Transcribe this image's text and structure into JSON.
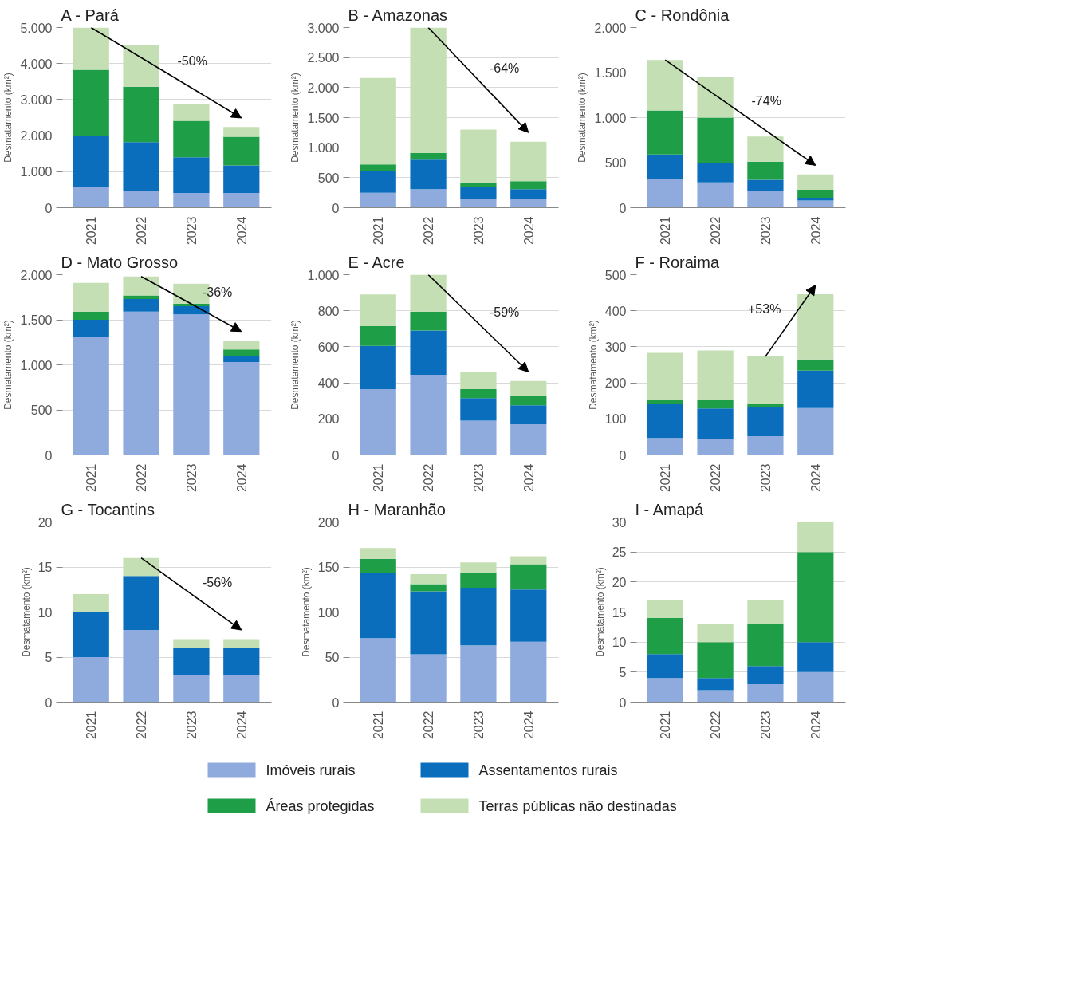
{
  "chart_data": [
    {
      "type": "bar",
      "stacked": true,
      "title": "A - Pará",
      "ylabel": "Desmatamento (km²)",
      "categories": [
        "2021",
        "2022",
        "2023",
        "2024"
      ],
      "ylim": [
        0,
        5000
      ],
      "yticks": [
        0,
        {
          "value": 1000,
          "label": "1.000"
        },
        {
          "value": 2000,
          "label": "2.000"
        },
        {
          "value": 3000,
          "label": "3.000"
        },
        {
          "value": 4000,
          "label": "4.000"
        },
        {
          "value": 5000,
          "label": "5.000"
        }
      ],
      "grid": "y",
      "annotations": [
        "-50%"
      ],
      "series": [
        {
          "color": "#8faadc",
          "values": [
            580,
            460,
            410,
            410
          ]
        },
        {
          "color": "#0a6ebd",
          "values": [
            1420,
            1360,
            990,
            760
          ]
        },
        {
          "color": "#1f9e48",
          "values": [
            1830,
            1540,
            1010,
            800
          ]
        },
        {
          "color": "#c5dfb4",
          "values": [
            1170,
            1160,
            470,
            270
          ]
        }
      ]
    },
    {
      "type": "bar",
      "stacked": true,
      "title": "B - Amazonas",
      "ylabel": "Desmatamento (km²)",
      "categories": [
        "2021",
        "2022",
        "2023",
        "2024"
      ],
      "ylim": [
        0,
        3000
      ],
      "yticks": [
        0,
        500,
        {
          "value": 1000,
          "label": "1.000"
        },
        {
          "value": 1500,
          "label": "1.500"
        },
        {
          "value": 2000,
          "label": "2.000"
        },
        {
          "value": 2500,
          "label": "2.500"
        },
        {
          "value": 3000,
          "label": "3.000"
        }
      ],
      "grid": "y",
      "annotations": [
        "-64%"
      ],
      "series": [
        {
          "color": "#8faadc",
          "values": [
            250,
            310,
            150,
            140
          ]
        },
        {
          "color": "#0a6ebd",
          "values": [
            360,
            490,
            190,
            170
          ]
        },
        {
          "color": "#1f9e48",
          "values": [
            110,
            110,
            80,
            130
          ]
        },
        {
          "color": "#c5dfb4",
          "values": [
            1440,
            2090,
            880,
            660
          ]
        }
      ]
    },
    {
      "type": "bar",
      "stacked": true,
      "title": "C - Rondônia",
      "ylabel": "Desmatamento (km²)",
      "categories": [
        "2021",
        "2022",
        "2023",
        "2024"
      ],
      "ylim": [
        0,
        2000
      ],
      "yticks": [
        0,
        500,
        {
          "value": 1000,
          "label": "1.000"
        },
        {
          "value": 1500,
          "label": "1.500"
        },
        {
          "value": 2000,
          "label": "2.000"
        }
      ],
      "grid": "y",
      "annotations": [
        "-74%"
      ],
      "series": [
        {
          "color": "#8faadc",
          "values": [
            320,
            280,
            190,
            80
          ]
        },
        {
          "color": "#0a6ebd",
          "values": [
            270,
            220,
            120,
            30
          ]
        },
        {
          "color": "#1f9e48",
          "values": [
            490,
            500,
            200,
            90
          ]
        },
        {
          "color": "#c5dfb4",
          "values": [
            560,
            450,
            280,
            170
          ]
        }
      ]
    },
    {
      "type": "bar",
      "stacked": true,
      "title": "D - Mato Grosso",
      "ylabel": "Desmatamento (km²)",
      "categories": [
        "2021",
        "2022",
        "2023",
        "2024"
      ],
      "ylim": [
        0,
        2000
      ],
      "yticks": [
        0,
        500,
        {
          "value": 1000,
          "label": "1.000"
        },
        {
          "value": 1500,
          "label": "1.500"
        },
        {
          "value": 2000,
          "label": "2.000"
        }
      ],
      "grid": "y",
      "annotations": [
        "-36%"
      ],
      "series": [
        {
          "color": "#8faadc",
          "values": [
            1310,
            1590,
            1560,
            1030
          ]
        },
        {
          "color": "#0a6ebd",
          "values": [
            190,
            140,
            90,
            70
          ]
        },
        {
          "color": "#1f9e48",
          "values": [
            90,
            40,
            30,
            70
          ]
        },
        {
          "color": "#c5dfb4",
          "values": [
            320,
            210,
            220,
            100
          ]
        }
      ]
    },
    {
      "type": "bar",
      "stacked": true,
      "title": "E - Acre",
      "ylabel": "Desmatamento (km²)",
      "categories": [
        "2021",
        "2022",
        "2023",
        "2024"
      ],
      "ylim": [
        0,
        1000
      ],
      "yticks": [
        0,
        200,
        400,
        600,
        800,
        {
          "value": 1000,
          "label": "1.000"
        }
      ],
      "grid": "y",
      "annotations": [
        "-59%"
      ],
      "series": [
        {
          "color": "#8faadc",
          "values": [
            365,
            445,
            190,
            170
          ]
        },
        {
          "color": "#0a6ebd",
          "values": [
            240,
            245,
            125,
            105
          ]
        },
        {
          "color": "#1f9e48",
          "values": [
            110,
            105,
            50,
            55
          ]
        },
        {
          "color": "#c5dfb4",
          "values": [
            175,
            205,
            95,
            80
          ]
        }
      ]
    },
    {
      "type": "bar",
      "stacked": true,
      "title": "F - Roraima",
      "ylabel": "Desmatamento (km²)",
      "categories": [
        "2021",
        "2022",
        "2023",
        "2024"
      ],
      "ylim": [
        0,
        500
      ],
      "yticks": [
        0,
        100,
        200,
        300,
        400,
        500
      ],
      "grid": "y",
      "annotations": [
        "+53%"
      ],
      "series": [
        {
          "color": "#8faadc",
          "values": [
            47,
            45,
            52,
            130
          ]
        },
        {
          "color": "#0a6ebd",
          "values": [
            94,
            84,
            80,
            104
          ]
        },
        {
          "color": "#1f9e48",
          "values": [
            11,
            25,
            9,
            31
          ]
        },
        {
          "color": "#c5dfb4",
          "values": [
            131,
            136,
            132,
            181
          ]
        }
      ]
    },
    {
      "type": "bar",
      "stacked": true,
      "title": "G - Tocantins",
      "ylabel": "Desmatamento (km²)",
      "categories": [
        "2021",
        "2022",
        "2023",
        "2024"
      ],
      "ylim": [
        0,
        20
      ],
      "yticks": [
        0,
        5,
        10,
        15,
        20
      ],
      "grid": "y",
      "annotations": [
        "-56%"
      ],
      "series": [
        {
          "color": "#8faadc",
          "values": [
            5,
            8,
            3,
            3
          ]
        },
        {
          "color": "#0a6ebd",
          "values": [
            5,
            6,
            3,
            3
          ]
        },
        {
          "color": "#1f9e48",
          "values": [
            0,
            0,
            0,
            0
          ]
        },
        {
          "color": "#c5dfb4",
          "values": [
            2,
            2,
            1,
            1
          ]
        }
      ]
    },
    {
      "type": "bar",
      "stacked": true,
      "title": "H - Maranhão",
      "ylabel": "Desmatamento (km²)",
      "categories": [
        "2021",
        "2022",
        "2023",
        "2024"
      ],
      "ylim": [
        0,
        200
      ],
      "yticks": [
        0,
        50,
        100,
        150,
        200
      ],
      "grid": "y",
      "series": [
        {
          "color": "#8faadc",
          "values": [
            71,
            53,
            63,
            67
          ]
        },
        {
          "color": "#0a6ebd",
          "values": [
            72,
            70,
            64,
            58
          ]
        },
        {
          "color": "#1f9e48",
          "values": [
            16,
            8,
            17,
            28
          ]
        },
        {
          "color": "#c5dfb4",
          "values": [
            12,
            11,
            11,
            9
          ]
        }
      ]
    },
    {
      "type": "bar",
      "stacked": true,
      "title": "I - Amapá",
      "ylabel": "Desmatamento (km²)",
      "categories": [
        "2021",
        "2022",
        "2023",
        "2024"
      ],
      "ylim": [
        0,
        30
      ],
      "yticks": [
        0,
        5,
        10,
        15,
        20,
        25,
        30
      ],
      "grid": "y",
      "legend": "bottom",
      "series": [
        {
          "name": "Imóveis rurais",
          "color": "#8faadc",
          "values": [
            4,
            2,
            3,
            5
          ]
        },
        {
          "name": "Assentamentos rurais",
          "color": "#0a6ebd",
          "values": [
            4,
            2,
            3,
            5
          ]
        },
        {
          "name": "Áreas protegidas",
          "color": "#1f9e48",
          "values": [
            6,
            6,
            7,
            15
          ]
        },
        {
          "name": "Terras públicas não destinadas",
          "color": "#c5dfb4",
          "values": [
            3,
            3,
            4,
            5
          ]
        }
      ]
    }
  ]
}
